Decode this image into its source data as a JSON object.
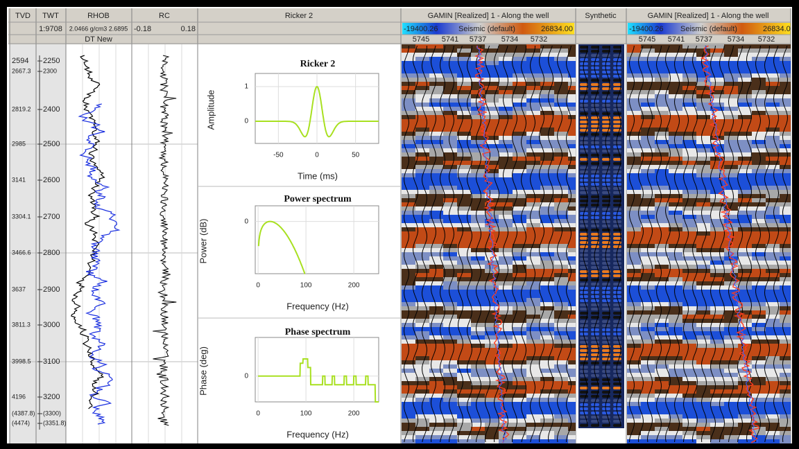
{
  "tracks": {
    "tvd": {
      "title": "TVD",
      "labels": [
        "2594",
        "2667.3",
        "2819.2",
        "2985",
        "3141",
        "3304.1",
        "3466.6",
        "3637",
        "3811.3",
        "3998.5",
        "4196",
        "(4387.8)",
        "(4474)"
      ]
    },
    "twt": {
      "title": "TWT",
      "scale": "1:9708",
      "labels": [
        "2250",
        "2300",
        "2400",
        "2500",
        "2600",
        "2700",
        "2800",
        "2900",
        "3000",
        "3100",
        "3200",
        "(3300)",
        "(3351.8)"
      ]
    },
    "rhob": {
      "title": "RHOB",
      "scale": "2.0466 g/cm3 2.6895",
      "subtitle": "DT New"
    },
    "rc": {
      "title": "RC",
      "min": "-0.18",
      "max": "0.18"
    },
    "wavelet": {
      "title": "Ricker 2",
      "plots": [
        {
          "title": "Ricker 2",
          "ylabel": "Amplitude",
          "xlabel": "Time (ms)",
          "xlim": [
            -80,
            80
          ],
          "ylim": [
            -0.64,
            1.38
          ],
          "xticks": [
            -50,
            0,
            50
          ],
          "yticks": [
            1,
            0
          ]
        },
        {
          "title": "Power spectrum",
          "ylabel": "Power (dB)",
          "xlabel": "Frequency (Hz)",
          "xlim": [
            -6,
            252
          ],
          "ylim": [
            -50,
            15
          ],
          "xticks": [
            0,
            100,
            200
          ],
          "yticks": [
            0
          ]
        },
        {
          "title": "Phase spectrum",
          "ylabel": "Phase (deg)",
          "xlabel": "Frequency (Hz)",
          "xlim": [
            -6,
            252
          ],
          "ylim": [
            -120,
            180
          ],
          "xticks": [
            0,
            100,
            200
          ],
          "yticks": [
            0
          ]
        }
      ]
    },
    "seismic_left": {
      "title": "GAMIN [Realized] 1 - Along the well",
      "min": "-19400.26",
      "colorbar": "Seismic (default)",
      "max": "26834.00",
      "traces": [
        "5745",
        "5741",
        "5737",
        "5734",
        "5732"
      ]
    },
    "synthetic": {
      "title": "Synthetic"
    },
    "seismic_right": {
      "title": "GAMIN [Realized] 1 - Along the well",
      "min": "-19400.26",
      "colorbar": "Seismic (default)",
      "max": "26834.0",
      "traces": [
        "5745",
        "5741",
        "5737",
        "5734",
        "5732"
      ]
    }
  }
}
